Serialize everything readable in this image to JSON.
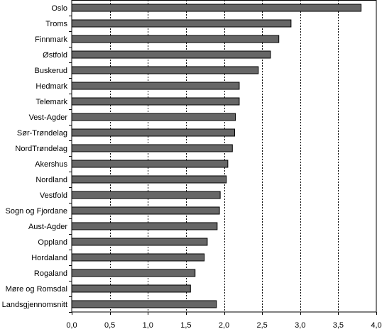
{
  "chart_data": {
    "type": "bar",
    "orientation": "horizontal",
    "categories": [
      "Oslo",
      "Troms",
      "Finnmark",
      "Østfold",
      "Buskerud",
      "Hedmark",
      "Telemark",
      "Vest-Agder",
      "Sør-Trøndelag",
      "NordTrøndelag",
      "Akershus",
      "Nordland",
      "Vestfold",
      "Sogn og Fjordane",
      "Aust-Agder",
      "Oppland",
      "Hordaland",
      "Rogaland",
      "Møre og Romsdal",
      "Landsgjennomsnitt"
    ],
    "values": [
      3.8,
      2.88,
      2.72,
      2.61,
      2.45,
      2.2,
      2.2,
      2.15,
      2.14,
      2.11,
      2.05,
      2.03,
      1.95,
      1.94,
      1.91,
      1.78,
      1.74,
      1.62,
      1.56,
      1.9
    ],
    "xlim": [
      0,
      4
    ],
    "xticks": [
      "0,0",
      "0,5",
      "1,0",
      "1,5",
      "2,0",
      "2,5",
      "3,0",
      "3,5",
      "4,0"
    ],
    "grid": "vertical dotted",
    "bar_color": "#666666",
    "title": "",
    "xlabel": "",
    "ylabel": ""
  }
}
